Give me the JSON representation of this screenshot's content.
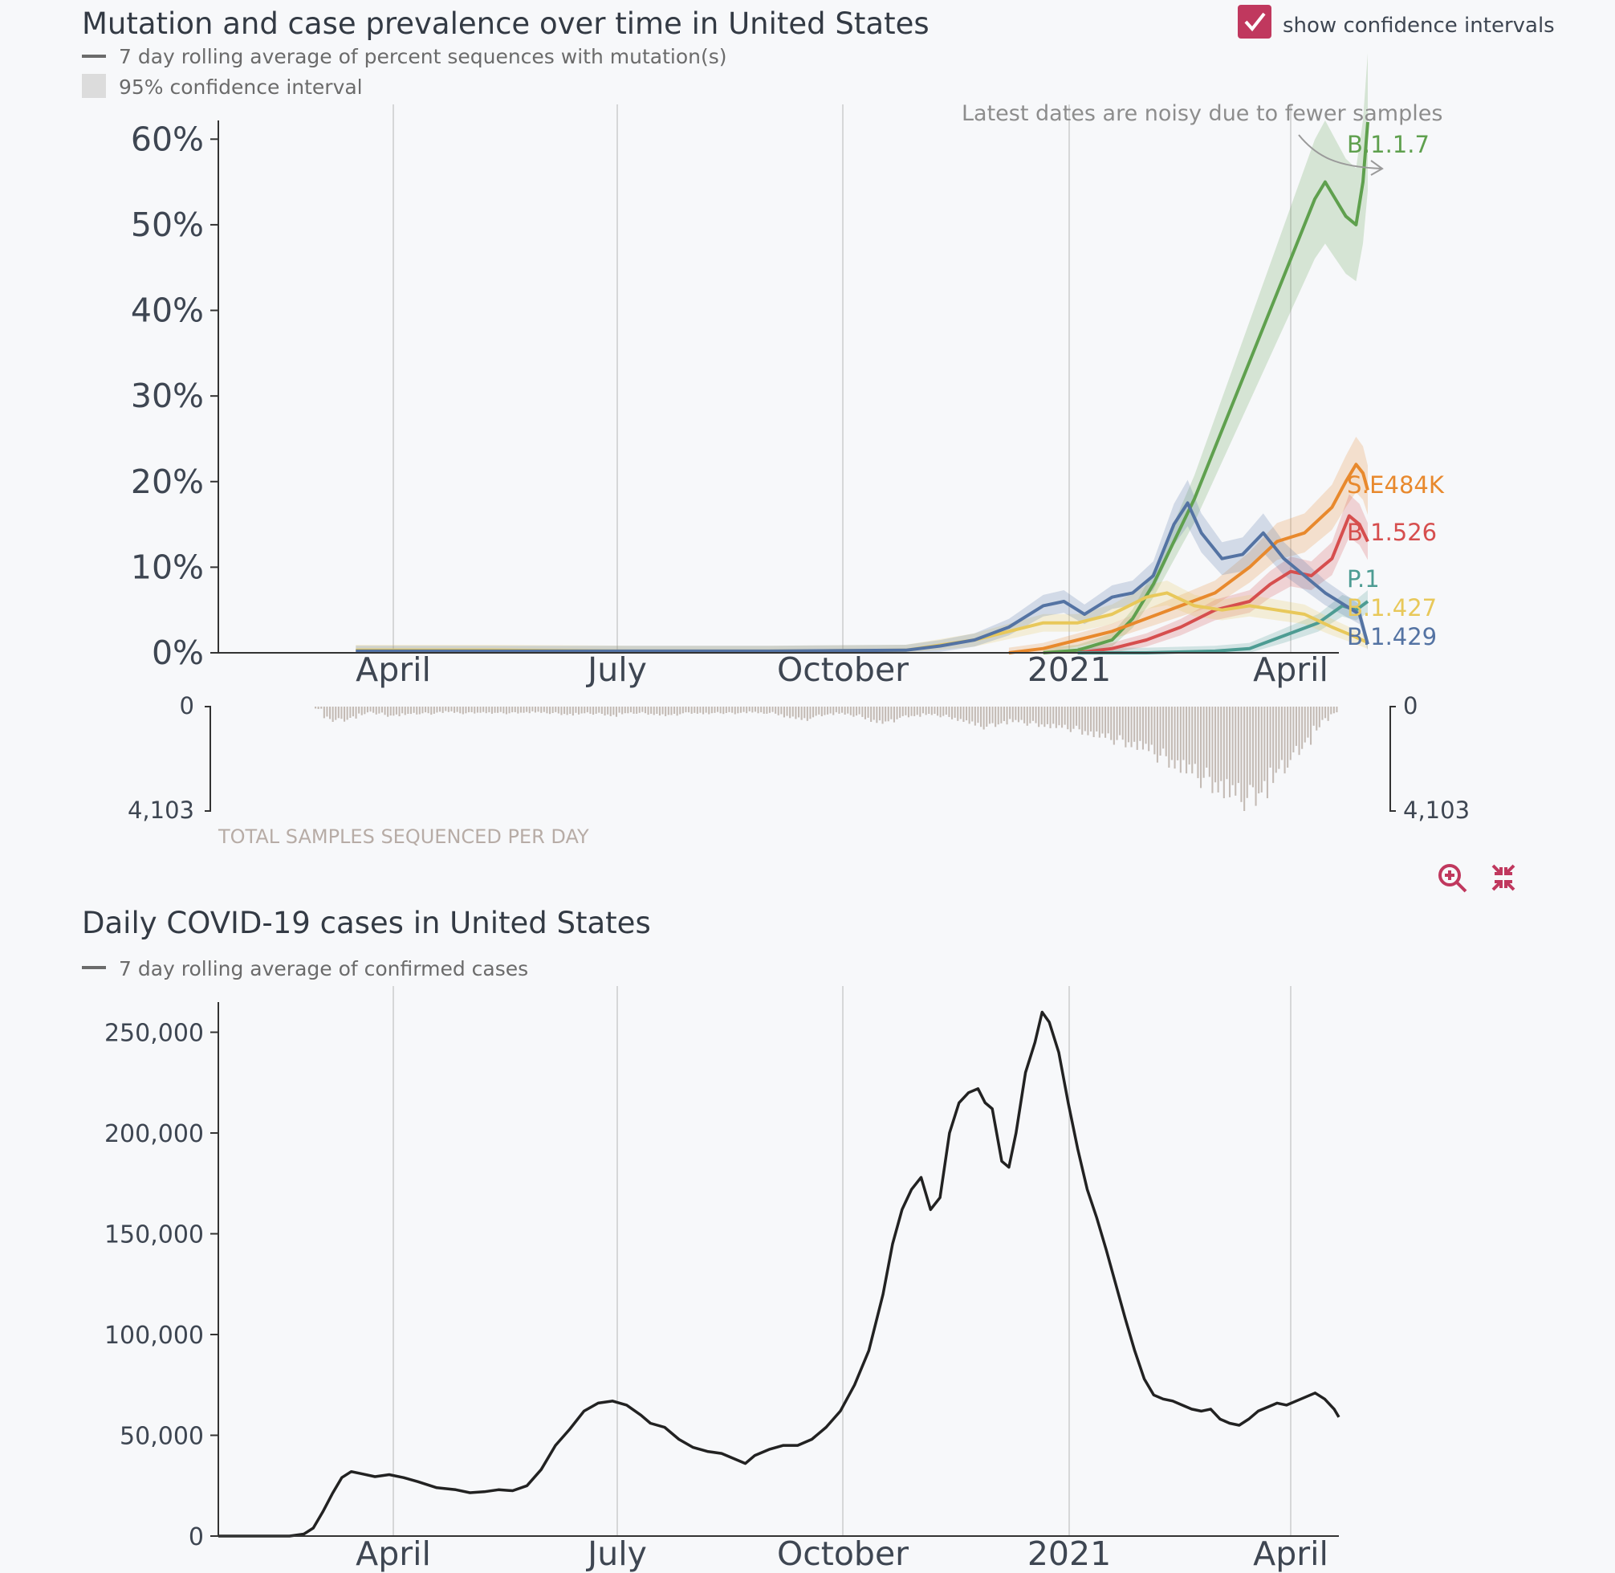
{
  "checkbox": {
    "label": "show confidence intervals",
    "checked": true,
    "accent": "#c0385e"
  },
  "icons": {
    "zoom": "zoom-in-icon",
    "collapse": "collapse-icon"
  },
  "chart_data": [
    {
      "type": "line",
      "title": "Mutation and case prevalence over time in United States",
      "legend": [
        "7 day rolling average of percent sequences with mutation(s)",
        "95% confidence interval"
      ],
      "annotation": "Latest dates are noisy due to fewer samples",
      "x_tick_labels": [
        "April",
        "July",
        "October",
        "2021",
        "April"
      ],
      "y_tick_labels": [
        "0%",
        "10%",
        "20%",
        "30%",
        "40%",
        "50%",
        "60%"
      ],
      "ylim": [
        0,
        65
      ],
      "x_months": [
        0,
        16.3
      ],
      "series": [
        {
          "name": "B.1.1.7",
          "color": "#5fa04e",
          "points": [
            [
              12.0,
              0
            ],
            [
              12.5,
              0.3
            ],
            [
              13.0,
              1.5
            ],
            [
              13.3,
              4
            ],
            [
              13.6,
              8
            ],
            [
              13.9,
              13
            ],
            [
              14.2,
              18
            ],
            [
              14.5,
              24
            ],
            [
              14.8,
              30
            ],
            [
              15.1,
              36
            ],
            [
              15.4,
              42
            ],
            [
              15.7,
              48
            ],
            [
              15.95,
              53
            ],
            [
              16.1,
              55
            ],
            [
              16.25,
              53
            ],
            [
              16.4,
              51
            ],
            [
              16.55,
              50
            ],
            [
              16.65,
              55
            ],
            [
              16.72,
              62
            ]
          ]
        },
        {
          "name": "S:E484K",
          "color": "#e8892d",
          "points": [
            [
              11.5,
              0
            ],
            [
              12.0,
              0.5
            ],
            [
              12.5,
              1.5
            ],
            [
              13.0,
              2.5
            ],
            [
              13.5,
              4
            ],
            [
              14.0,
              5.5
            ],
            [
              14.5,
              7
            ],
            [
              15.0,
              10
            ],
            [
              15.4,
              13
            ],
            [
              15.8,
              14
            ],
            [
              16.2,
              17
            ],
            [
              16.4,
              20
            ],
            [
              16.55,
              22
            ],
            [
              16.65,
              21
            ],
            [
              16.72,
              19
            ]
          ]
        },
        {
          "name": "B.1.526",
          "color": "#d64e4e",
          "points": [
            [
              12.5,
              0
            ],
            [
              13.0,
              0.5
            ],
            [
              13.5,
              1.5
            ],
            [
              14.0,
              3
            ],
            [
              14.5,
              5
            ],
            [
              15.0,
              6
            ],
            [
              15.3,
              8
            ],
            [
              15.6,
              9.5
            ],
            [
              15.9,
              9
            ],
            [
              16.2,
              11
            ],
            [
              16.45,
              16
            ],
            [
              16.6,
              15
            ],
            [
              16.72,
              13
            ]
          ]
        },
        {
          "name": "P.1",
          "color": "#4d9c93",
          "points": [
            [
              12.5,
              0
            ],
            [
              13.5,
              0
            ],
            [
              14.5,
              0.2
            ],
            [
              15.0,
              0.5
            ],
            [
              15.5,
              2
            ],
            [
              16.0,
              3.5
            ],
            [
              16.35,
              5.5
            ],
            [
              16.55,
              5
            ],
            [
              16.72,
              6
            ]
          ]
        },
        {
          "name": "B.1.427",
          "color": "#e8c85a",
          "points": [
            [
              2.0,
              0.3
            ],
            [
              3.0,
              0.3
            ],
            [
              4.0,
              0.3
            ],
            [
              6.0,
              0.2
            ],
            [
              8.0,
              0.2
            ],
            [
              10.0,
              0.3
            ],
            [
              11.0,
              1.5
            ],
            [
              11.5,
              2.5
            ],
            [
              12.0,
              3.5
            ],
            [
              12.5,
              3.5
            ],
            [
              13.0,
              4.5
            ],
            [
              13.5,
              6.5
            ],
            [
              13.8,
              7
            ],
            [
              14.2,
              5.5
            ],
            [
              14.6,
              5
            ],
            [
              15.0,
              5.5
            ],
            [
              15.4,
              5
            ],
            [
              15.8,
              4.5
            ],
            [
              16.2,
              3
            ],
            [
              16.5,
              2
            ],
            [
              16.72,
              1.2
            ]
          ]
        },
        {
          "name": "B.1.429",
          "color": "#5473a3",
          "points": [
            [
              2.0,
              0.2
            ],
            [
              4.0,
              0.2
            ],
            [
              6.0,
              0.2
            ],
            [
              8.0,
              0.2
            ],
            [
              10.0,
              0.3
            ],
            [
              10.5,
              0.8
            ],
            [
              11.0,
              1.5
            ],
            [
              11.5,
              3
            ],
            [
              12.0,
              5.5
            ],
            [
              12.3,
              6
            ],
            [
              12.6,
              4.5
            ],
            [
              13.0,
              6.5
            ],
            [
              13.3,
              7
            ],
            [
              13.6,
              9
            ],
            [
              13.9,
              15
            ],
            [
              14.1,
              17.5
            ],
            [
              14.3,
              14
            ],
            [
              14.6,
              11
            ],
            [
              14.9,
              11.5
            ],
            [
              15.2,
              14
            ],
            [
              15.5,
              11
            ],
            [
              15.8,
              9
            ],
            [
              16.1,
              7
            ],
            [
              16.4,
              5.5
            ],
            [
              16.6,
              4.5
            ],
            [
              16.72,
              1
            ]
          ]
        }
      ]
    },
    {
      "type": "bar",
      "title": "TOTAL SAMPLES SEQUENCED PER DAY",
      "axis_labels": [
        "0",
        "4,103"
      ],
      "ylim": [
        0,
        4103
      ],
      "values": [
        100,
        520,
        600,
        590,
        470,
        360,
        260,
        310,
        400,
        380,
        350,
        330,
        300,
        320,
        250,
        230,
        280,
        300,
        270,
        260,
        300,
        280,
        300,
        270,
        260,
        250,
        280,
        290,
        330,
        350,
        330,
        300,
        320,
        350,
        400,
        320,
        300,
        280,
        320,
        350,
        400,
        380,
        300,
        280,
        300,
        320,
        280,
        290,
        300,
        260,
        250,
        300,
        280,
        340,
        450,
        520,
        600,
        480,
        380,
        330,
        300,
        360,
        400,
        500,
        640,
        720,
        660,
        500,
        420,
        400,
        350,
        380,
        420,
        500,
        600,
        720,
        850,
        900,
        800,
        700,
        650,
        700,
        750,
        800,
        850,
        900,
        950,
        1000,
        1100,
        1200,
        1300,
        1400,
        1500,
        1600,
        1700,
        1800,
        2000,
        2200,
        2400,
        2600,
        2800,
        3000,
        3200,
        3400,
        3600,
        3800,
        4000,
        4103,
        3900,
        3600,
        3200,
        2800,
        2400,
        1900,
        1500,
        1000,
        600,
        300
      ]
    },
    {
      "type": "line",
      "title": "Daily COVID-19 cases in United States",
      "legend": [
        "7 day rolling average of confirmed cases"
      ],
      "x_tick_labels": [
        "April",
        "July",
        "October",
        "2021",
        "April"
      ],
      "y_tick_labels": [
        "0",
        "50,000",
        "100,000",
        "150,000",
        "200,000",
        "250,000"
      ],
      "ylim": [
        0,
        260000
      ],
      "series": [
        {
          "name": "cases",
          "color": "#222222",
          "points": [
            [
              0,
              0
            ],
            [
              1.5,
              0
            ],
            [
              1.8,
              1000
            ],
            [
              2.0,
              4000
            ],
            [
              2.2,
              12000
            ],
            [
              2.4,
              21000
            ],
            [
              2.6,
              29000
            ],
            [
              2.8,
              32000
            ],
            [
              3.0,
              31000
            ],
            [
              3.3,
              29500
            ],
            [
              3.6,
              30500
            ],
            [
              3.9,
              29000
            ],
            [
              4.2,
              27000
            ],
            [
              4.6,
              24000
            ],
            [
              5.0,
              23000
            ],
            [
              5.3,
              21500
            ],
            [
              5.6,
              22000
            ],
            [
              5.9,
              23000
            ],
            [
              6.2,
              22500
            ],
            [
              6.5,
              25000
            ],
            [
              6.8,
              33000
            ],
            [
              7.1,
              45000
            ],
            [
              7.4,
              53000
            ],
            [
              7.7,
              62000
            ],
            [
              8.0,
              66000
            ],
            [
              8.3,
              67000
            ],
            [
              8.6,
              65000
            ],
            [
              8.9,
              60000
            ],
            [
              9.1,
              56000
            ],
            [
              9.4,
              54000
            ],
            [
              9.7,
              48000
            ],
            [
              10.0,
              44000
            ],
            [
              10.3,
              42000
            ],
            [
              10.6,
              41000
            ],
            [
              10.9,
              38000
            ],
            [
              11.1,
              36000
            ],
            [
              11.3,
              40000
            ],
            [
              11.6,
              43000
            ],
            [
              11.9,
              45000
            ],
            [
              12.2,
              45000
            ],
            [
              12.5,
              48000
            ],
            [
              12.8,
              54000
            ],
            [
              13.1,
              62000
            ],
            [
              13.4,
              75000
            ],
            [
              13.7,
              92000
            ],
            [
              14.0,
              120000
            ],
            [
              14.2,
              145000
            ],
            [
              14.4,
              162000
            ],
            [
              14.6,
              172000
            ],
            [
              14.8,
              178000
            ],
            [
              15.0,
              162000
            ],
            [
              15.2,
              168000
            ],
            [
              15.4,
              200000
            ],
            [
              15.6,
              215000
            ],
            [
              15.8,
              220000
            ],
            [
              16.0,
              222000
            ],
            [
              16.15,
              215000
            ],
            [
              16.3,
              212000
            ],
            [
              16.5,
              186000
            ],
            [
              16.65,
              183000
            ],
            [
              16.8,
              200000
            ],
            [
              17.0,
              230000
            ],
            [
              17.2,
              245000
            ],
            [
              17.35,
              260000
            ],
            [
              17.5,
              255000
            ],
            [
              17.7,
              240000
            ],
            [
              17.9,
              215000
            ],
            [
              18.1,
              192000
            ],
            [
              18.3,
              172000
            ],
            [
              18.5,
              158000
            ],
            [
              18.7,
              142000
            ],
            [
              18.9,
              125000
            ],
            [
              19.1,
              108000
            ],
            [
              19.3,
              92000
            ],
            [
              19.5,
              78000
            ],
            [
              19.7,
              70000
            ],
            [
              19.9,
              68000
            ],
            [
              20.1,
              67000
            ],
            [
              20.3,
              65000
            ],
            [
              20.5,
              63000
            ],
            [
              20.7,
              62000
            ],
            [
              20.9,
              63000
            ],
            [
              21.1,
              58000
            ],
            [
              21.3,
              56000
            ],
            [
              21.5,
              55000
            ],
            [
              21.7,
              58000
            ],
            [
              21.9,
              62000
            ],
            [
              22.1,
              64000
            ],
            [
              22.3,
              66000
            ],
            [
              22.5,
              65000
            ],
            [
              22.7,
              67000
            ],
            [
              22.9,
              69000
            ],
            [
              23.1,
              71000
            ],
            [
              23.3,
              68000
            ],
            [
              23.5,
              63000
            ],
            [
              23.6,
              59000
            ]
          ]
        }
      ]
    }
  ]
}
